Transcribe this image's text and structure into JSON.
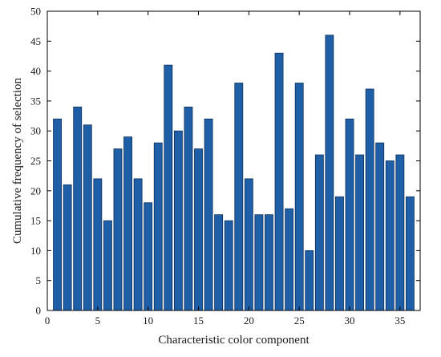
{
  "chart_data": {
    "type": "bar",
    "title": "",
    "xlabel": "Characteristic color component",
    "ylabel": "Cumulative frequency of selection",
    "categories": [
      1,
      2,
      3,
      4,
      5,
      6,
      7,
      8,
      9,
      10,
      11,
      12,
      13,
      14,
      15,
      16,
      17,
      18,
      19,
      20,
      21,
      22,
      23,
      24,
      25,
      26,
      27,
      28,
      29,
      30,
      31,
      32,
      33,
      34,
      35,
      36
    ],
    "values": [
      32,
      21,
      34,
      31,
      22,
      15,
      27,
      29,
      22,
      18,
      28,
      41,
      30,
      34,
      27,
      32,
      16,
      15,
      38,
      22,
      16,
      16,
      43,
      17,
      38,
      10,
      26,
      46,
      19,
      32,
      26,
      37,
      28,
      25,
      26,
      19
    ],
    "xlim": [
      0,
      37
    ],
    "ylim": [
      0,
      50
    ],
    "xticks": [
      0,
      5,
      10,
      15,
      20,
      25,
      30,
      35
    ],
    "yticks": [
      0,
      5,
      10,
      15,
      20,
      25,
      30,
      35,
      40,
      45,
      50
    ],
    "grid": false,
    "legend": "none",
    "bar_color": "#1f5fa8",
    "bar_edge_color": "#0d2f5a"
  }
}
